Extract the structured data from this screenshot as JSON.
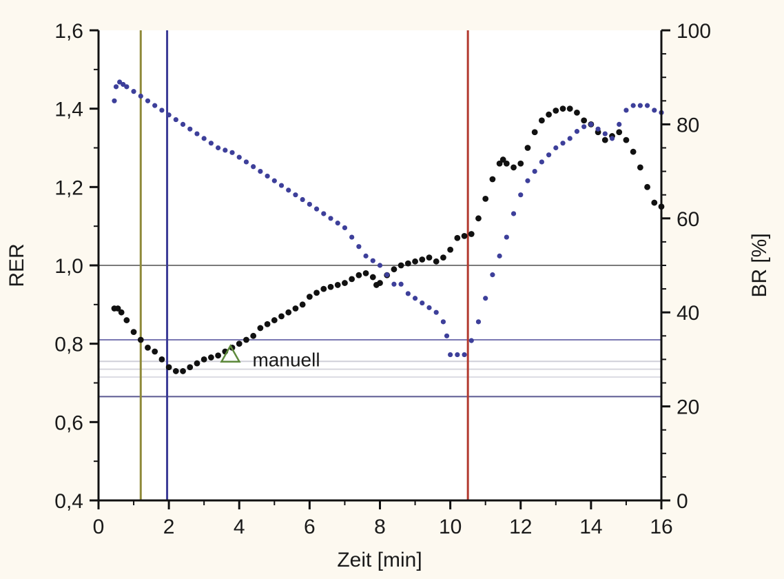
{
  "chart_data": {
    "type": "scatter",
    "xlabel": "Zeit [min]",
    "ylabel_left": "RER",
    "ylabel_right": "BR [%]",
    "xlim": [
      0,
      16
    ],
    "ylim_left": [
      0.4,
      1.6
    ],
    "ylim_right": [
      0,
      100
    ],
    "x_ticks": [
      "0",
      "2",
      "4",
      "6",
      "8",
      "10",
      "12",
      "14",
      "16"
    ],
    "y_left_ticks": [
      "0,4",
      "0,6",
      "0,8",
      "1,0",
      "1,2",
      "1,4",
      "1,6"
    ],
    "y_right_ticks": [
      "0",
      "20",
      "40",
      "60",
      "80",
      "100"
    ],
    "grid": false,
    "series": [
      {
        "axis": "left",
        "color": "#111111",
        "style": "dots",
        "points": [
          [
            0.45,
            0.89
          ],
          [
            0.55,
            0.89
          ],
          [
            0.65,
            0.88
          ],
          [
            0.8,
            0.86
          ],
          [
            1.0,
            0.83
          ],
          [
            1.2,
            0.81
          ],
          [
            1.4,
            0.79
          ],
          [
            1.6,
            0.78
          ],
          [
            1.8,
            0.76
          ],
          [
            2.0,
            0.74
          ],
          [
            2.2,
            0.73
          ],
          [
            2.4,
            0.73
          ],
          [
            2.6,
            0.74
          ],
          [
            2.8,
            0.75
          ],
          [
            3.0,
            0.76
          ],
          [
            3.2,
            0.765
          ],
          [
            3.4,
            0.77
          ],
          [
            3.6,
            0.78
          ],
          [
            3.8,
            0.79
          ],
          [
            4.0,
            0.8
          ],
          [
            4.2,
            0.81
          ],
          [
            4.4,
            0.82
          ],
          [
            4.6,
            0.84
          ],
          [
            4.8,
            0.85
          ],
          [
            5.0,
            0.86
          ],
          [
            5.2,
            0.87
          ],
          [
            5.4,
            0.88
          ],
          [
            5.6,
            0.89
          ],
          [
            5.8,
            0.9
          ],
          [
            6.0,
            0.92
          ],
          [
            6.2,
            0.93
          ],
          [
            6.4,
            0.94
          ],
          [
            6.6,
            0.945
          ],
          [
            6.8,
            0.95
          ],
          [
            7.0,
            0.955
          ],
          [
            7.2,
            0.965
          ],
          [
            7.4,
            0.975
          ],
          [
            7.6,
            0.98
          ],
          [
            7.8,
            0.97
          ],
          [
            7.9,
            0.95
          ],
          [
            8.0,
            0.955
          ],
          [
            8.2,
            0.975
          ],
          [
            8.4,
            0.99
          ],
          [
            8.6,
            1.0
          ],
          [
            8.8,
            1.005
          ],
          [
            9.0,
            1.01
          ],
          [
            9.2,
            1.015
          ],
          [
            9.4,
            1.02
          ],
          [
            9.6,
            1.01
          ],
          [
            9.8,
            1.02
          ],
          [
            10.0,
            1.04
          ],
          [
            10.2,
            1.07
          ],
          [
            10.4,
            1.075
          ],
          [
            10.6,
            1.08
          ],
          [
            10.8,
            1.12
          ],
          [
            11.0,
            1.17
          ],
          [
            11.2,
            1.22
          ],
          [
            11.4,
            1.26
          ],
          [
            11.5,
            1.27
          ],
          [
            11.6,
            1.26
          ],
          [
            11.8,
            1.25
          ],
          [
            12.0,
            1.26
          ],
          [
            12.2,
            1.3
          ],
          [
            12.4,
            1.34
          ],
          [
            12.6,
            1.37
          ],
          [
            12.8,
            1.385
          ],
          [
            13.0,
            1.395
          ],
          [
            13.2,
            1.4
          ],
          [
            13.4,
            1.4
          ],
          [
            13.6,
            1.39
          ],
          [
            13.8,
            1.37
          ],
          [
            14.0,
            1.36
          ],
          [
            14.2,
            1.34
          ],
          [
            14.4,
            1.32
          ],
          [
            14.6,
            1.33
          ],
          [
            14.8,
            1.34
          ],
          [
            15.0,
            1.32
          ],
          [
            15.2,
            1.29
          ],
          [
            15.4,
            1.25
          ],
          [
            15.6,
            1.2
          ],
          [
            15.8,
            1.16
          ],
          [
            16.0,
            1.15
          ]
        ]
      },
      {
        "axis": "right",
        "color": "#3d3f9a",
        "style": "dots",
        "points": [
          [
            0.45,
            85
          ],
          [
            0.5,
            88
          ],
          [
            0.6,
            89
          ],
          [
            0.7,
            88.5
          ],
          [
            0.8,
            88
          ],
          [
            1.0,
            87
          ],
          [
            1.2,
            86
          ],
          [
            1.4,
            85
          ],
          [
            1.6,
            84
          ],
          [
            1.8,
            83
          ],
          [
            2.0,
            82
          ],
          [
            2.2,
            81
          ],
          [
            2.4,
            80
          ],
          [
            2.6,
            79
          ],
          [
            2.8,
            78
          ],
          [
            3.0,
            77
          ],
          [
            3.2,
            76
          ],
          [
            3.4,
            75
          ],
          [
            3.6,
            74.5
          ],
          [
            3.8,
            74
          ],
          [
            4.0,
            73
          ],
          [
            4.2,
            72
          ],
          [
            4.4,
            71
          ],
          [
            4.6,
            70
          ],
          [
            4.8,
            69
          ],
          [
            5.0,
            68
          ],
          [
            5.2,
            67
          ],
          [
            5.4,
            66
          ],
          [
            5.6,
            65
          ],
          [
            5.8,
            64
          ],
          [
            6.0,
            63
          ],
          [
            6.2,
            62
          ],
          [
            6.4,
            61
          ],
          [
            6.6,
            60
          ],
          [
            6.8,
            59
          ],
          [
            7.0,
            58
          ],
          [
            7.2,
            56
          ],
          [
            7.4,
            54
          ],
          [
            7.6,
            52
          ],
          [
            7.8,
            51
          ],
          [
            8.0,
            50
          ],
          [
            8.2,
            48
          ],
          [
            8.4,
            46
          ],
          [
            8.6,
            46
          ],
          [
            8.8,
            44
          ],
          [
            9.0,
            43
          ],
          [
            9.2,
            42
          ],
          [
            9.4,
            41
          ],
          [
            9.6,
            40
          ],
          [
            9.8,
            38
          ],
          [
            9.9,
            35
          ],
          [
            10.0,
            31
          ],
          [
            10.2,
            31
          ],
          [
            10.4,
            31
          ],
          [
            10.6,
            34
          ],
          [
            10.8,
            38
          ],
          [
            11.0,
            43
          ],
          [
            11.2,
            48
          ],
          [
            11.4,
            52
          ],
          [
            11.6,
            56
          ],
          [
            11.8,
            61
          ],
          [
            12.0,
            65
          ],
          [
            12.2,
            68
          ],
          [
            12.4,
            70
          ],
          [
            12.6,
            72
          ],
          [
            12.8,
            73.5
          ],
          [
            13.0,
            75
          ],
          [
            13.2,
            76
          ],
          [
            13.4,
            77
          ],
          [
            13.6,
            78.5
          ],
          [
            13.8,
            79.5
          ],
          [
            14.0,
            80
          ],
          [
            14.2,
            79
          ],
          [
            14.4,
            78
          ],
          [
            14.6,
            77
          ],
          [
            14.8,
            80
          ],
          [
            15.0,
            83
          ],
          [
            15.2,
            84
          ],
          [
            15.4,
            84
          ],
          [
            15.6,
            84
          ],
          [
            15.8,
            83
          ],
          [
            16.0,
            82.5
          ]
        ]
      }
    ],
    "vertical_lines": [
      {
        "x": 1.2,
        "color": "#8f8a3a"
      },
      {
        "x": 1.95,
        "color": "#3a3a96"
      },
      {
        "x": 10.5,
        "color": "#b2392e"
      }
    ],
    "horizontal_lines": [
      {
        "y": 1.0,
        "axis": "left",
        "color": "#7a7a7a"
      },
      {
        "y": 0.81,
        "axis": "left",
        "color": "#7a78b2"
      },
      {
        "y": 0.665,
        "axis": "left",
        "color": "#5a5890"
      },
      {
        "y": 0.755,
        "axis": "left",
        "color": "#cfcfd8"
      },
      {
        "y": 0.735,
        "axis": "left",
        "color": "#d6d6de"
      },
      {
        "y": 0.715,
        "axis": "left",
        "color": "#dcdce4"
      }
    ],
    "annotations": [
      {
        "text": "manuell",
        "x": 3.75,
        "y": 0.77,
        "axis": "left",
        "marker": "triangle",
        "marker_color": "#5e8a3c"
      }
    ]
  }
}
